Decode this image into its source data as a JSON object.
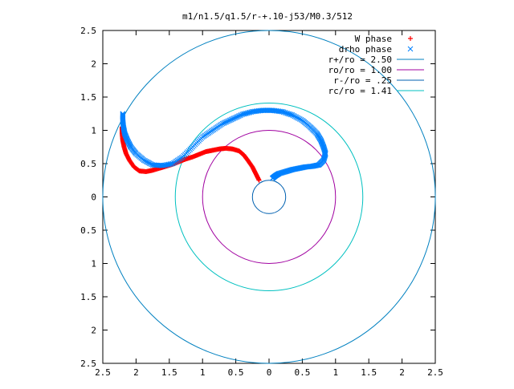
{
  "chart_data": {
    "type": "scatter",
    "title": "m1/n1.5/q1.5/r-+.10-j53/M0.3/512",
    "xlabel": "",
    "ylabel": "",
    "xlim": [
      2.5,
      -2.5
    ],
    "ylim": [
      -2.5,
      2.5
    ],
    "x_tick_labels": [
      "2.5",
      "2",
      "1.5",
      "1",
      "0.5",
      "0",
      "0.5",
      "1",
      "1.5",
      "2",
      "2.5"
    ],
    "y_tick_labels": [
      "2.5",
      "2",
      "1.5",
      "1",
      "0.5",
      "0",
      "0.5",
      "1",
      "1.5",
      "2",
      "2.5"
    ],
    "grid": false,
    "legend_position": "top-right",
    "series": [
      {
        "name": "W phase",
        "marker": "+",
        "color": "#ff0000",
        "points": [
          [
            0.15,
            0.25
          ],
          [
            0.2,
            0.35
          ],
          [
            0.25,
            0.45
          ],
          [
            0.32,
            0.55
          ],
          [
            0.38,
            0.63
          ],
          [
            0.45,
            0.69
          ],
          [
            0.55,
            0.72
          ],
          [
            0.65,
            0.73
          ],
          [
            0.75,
            0.72
          ],
          [
            0.85,
            0.7
          ],
          [
            0.95,
            0.68
          ],
          [
            1.05,
            0.64
          ],
          [
            1.15,
            0.6
          ],
          [
            1.25,
            0.57
          ],
          [
            1.35,
            0.53
          ],
          [
            1.45,
            0.49
          ],
          [
            1.55,
            0.46
          ],
          [
            1.65,
            0.43
          ],
          [
            1.75,
            0.4
          ],
          [
            1.85,
            0.38
          ],
          [
            1.95,
            0.39
          ],
          [
            2.03,
            0.45
          ],
          [
            2.1,
            0.55
          ],
          [
            2.15,
            0.65
          ],
          [
            2.18,
            0.75
          ],
          [
            2.2,
            0.85
          ],
          [
            2.21,
            0.95
          ],
          [
            2.21,
            1.05
          ]
        ]
      },
      {
        "name": "drho phase",
        "marker": "x",
        "color": "#0080ff",
        "points": [
          [
            -0.05,
            0.28
          ],
          [
            -0.1,
            0.32
          ],
          [
            -0.15,
            0.35
          ],
          [
            -0.25,
            0.38
          ],
          [
            -0.35,
            0.41
          ],
          [
            -0.45,
            0.43
          ],
          [
            -0.55,
            0.45
          ],
          [
            -0.65,
            0.46
          ],
          [
            -0.75,
            0.48
          ],
          [
            -0.82,
            0.55
          ],
          [
            -0.85,
            0.65
          ],
          [
            -0.82,
            0.75
          ],
          [
            -0.78,
            0.85
          ],
          [
            -0.72,
            0.95
          ],
          [
            -0.62,
            1.05
          ],
          [
            -0.5,
            1.15
          ],
          [
            -0.35,
            1.23
          ],
          [
            -0.2,
            1.28
          ],
          [
            -0.05,
            1.3
          ],
          [
            0.1,
            1.3
          ],
          [
            0.25,
            1.28
          ],
          [
            0.4,
            1.24
          ],
          [
            0.55,
            1.17
          ],
          [
            0.7,
            1.1
          ],
          [
            0.85,
            1.0
          ],
          [
            1.0,
            0.9
          ],
          [
            1.15,
            0.75
          ],
          [
            1.3,
            0.6
          ],
          [
            1.45,
            0.5
          ],
          [
            1.6,
            0.47
          ],
          [
            1.75,
            0.48
          ],
          [
            1.88,
            0.55
          ],
          [
            2.0,
            0.65
          ],
          [
            2.08,
            0.75
          ],
          [
            2.13,
            0.85
          ],
          [
            2.17,
            0.95
          ],
          [
            2.19,
            1.05
          ],
          [
            2.2,
            1.15
          ],
          [
            2.2,
            1.25
          ]
        ]
      },
      {
        "name": "r+/ro = 2.50",
        "type": "circle",
        "radius": 2.5,
        "color": "#0080c0"
      },
      {
        "name": "ro/ro = 1.00",
        "type": "circle",
        "radius": 1.0,
        "color": "#a000a0"
      },
      {
        "name": "r-/ro = .25",
        "type": "circle",
        "radius": 0.25,
        "color": "#0060b0"
      },
      {
        "name": "rc/ro = 1.41",
        "type": "circle",
        "radius": 1.41,
        "color": "#00c0c0"
      }
    ]
  }
}
